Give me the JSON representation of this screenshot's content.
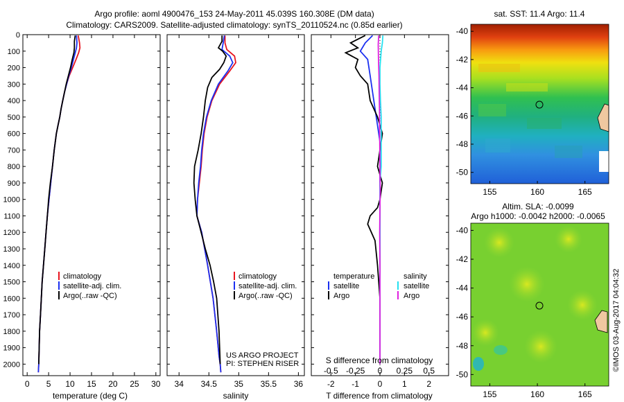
{
  "header": {
    "title_line1": "Argo profile: aoml 4900476_153 24-May-2011 45.039S 160.308E (DM data)",
    "title_line2": "Climatology: CARS2009. Satellite-adjusted climatology: synTS_20110524.nc (0.85d earlier)"
  },
  "credit": "©IMOS 03-Aug-2017 04:04:32",
  "colors": {
    "climatology": "#e8141e",
    "satellite": "#1a2ff0",
    "argo": "#000000",
    "sat_salinity": "#22e0f0",
    "argo_salinity": "#e020e0"
  },
  "chart_data": [
    {
      "type": "line",
      "panel": "temperature",
      "xlabel": "temperature (deg C)",
      "ylabel": "",
      "xlim": [
        -1,
        31
      ],
      "ylim": [
        2070,
        0
      ],
      "y_inverted": true,
      "xticks": [
        0,
        5,
        10,
        15,
        20,
        25,
        30
      ],
      "xtick_labels": [
        "0",
        "5",
        "10",
        "15",
        "20",
        "25",
        "30"
      ],
      "yticks": [
        0,
        100,
        200,
        300,
        400,
        500,
        600,
        700,
        800,
        900,
        1000,
        1100,
        1200,
        1300,
        1400,
        1500,
        1600,
        1700,
        1800,
        1900,
        2000
      ],
      "ytick_labels": [
        "0",
        "100",
        "200",
        "300",
        "400",
        "500",
        "600",
        "700",
        "800",
        "900",
        "1000",
        "1100",
        "1200",
        "1300",
        "1400",
        "1500",
        "1600",
        "1700",
        "1800",
        "1900",
        "2000"
      ],
      "legend": [
        "climatology",
        "satellite-adj. clim.",
        "Argo(..raw -QC)"
      ],
      "legend_position": "lower-center",
      "series": [
        {
          "name": "climatology",
          "color": "#e8141e",
          "x": [
            11.9,
            12.2,
            12.3,
            12.0,
            11.4,
            10.6,
            9.8,
            9.2,
            8.7,
            8.3,
            7.9,
            7.6,
            7.2,
            6.8,
            6.3,
            5.9,
            5.5,
            5.1,
            4.7,
            4.4,
            4.1,
            3.8,
            3.5,
            3.3,
            3.1,
            2.9,
            2.8,
            2.7,
            2.6
          ],
          "y": [
            5,
            50,
            80,
            110,
            150,
            200,
            250,
            300,
            350,
            400,
            450,
            500,
            550,
            600,
            700,
            800,
            900,
            1000,
            1100,
            1200,
            1300,
            1400,
            1500,
            1600,
            1700,
            1800,
            1900,
            2000,
            2050
          ]
        },
        {
          "name": "satellite-adj. clim.",
          "color": "#1a2ff0",
          "x": [
            11.5,
            11.6,
            11.5,
            11.2,
            10.8,
            10.3,
            9.7,
            9.2,
            8.7,
            8.3,
            7.9,
            7.6,
            7.2,
            6.8,
            6.3,
            5.9,
            5.5,
            5.1,
            4.7,
            4.4,
            4.1,
            3.8,
            3.5,
            3.3,
            3.1,
            2.9,
            2.8,
            2.7,
            2.6
          ],
          "y": [
            5,
            50,
            80,
            110,
            150,
            200,
            250,
            300,
            350,
            400,
            450,
            500,
            550,
            600,
            700,
            800,
            900,
            1000,
            1100,
            1200,
            1300,
            1400,
            1500,
            1600,
            1700,
            1800,
            1900,
            2000,
            2050
          ]
        },
        {
          "name": "Argo(..raw -QC)",
          "color": "#000000",
          "x": [
            11.2,
            11.0,
            11.0,
            10.9,
            10.5,
            10.1,
            9.6,
            9.1,
            8.7,
            8.3,
            7.9,
            7.6,
            7.2,
            6.8,
            6.3,
            5.9,
            5.4,
            5.0,
            4.7,
            4.4,
            4.1,
            3.8,
            3.5,
            3.3,
            3.1,
            2.9,
            2.8,
            2.7
          ],
          "y": [
            5,
            40,
            80,
            110,
            150,
            200,
            250,
            300,
            350,
            400,
            450,
            500,
            550,
            600,
            700,
            800,
            900,
            1000,
            1100,
            1200,
            1300,
            1400,
            1500,
            1600,
            1700,
            1800,
            1900,
            2000
          ]
        }
      ]
    },
    {
      "type": "line",
      "panel": "salinity",
      "xlabel": "salinity",
      "ylabel": "",
      "xlim": [
        33.8,
        36.1
      ],
      "ylim": [
        2070,
        0
      ],
      "y_inverted": true,
      "xticks": [
        34,
        34.5,
        35,
        35.5,
        36
      ],
      "xtick_labels": [
        "34",
        "34.5",
        "35",
        "35.5",
        "36"
      ],
      "legend": [
        "climatology",
        "satellite-adj. clim.",
        "Argo(..raw -QC)"
      ],
      "legend_position": "lower-center",
      "annotations": [
        "US ARGO PROJECT",
        "PI: STEPHEN RISER"
      ],
      "series": [
        {
          "name": "climatology",
          "color": "#e8141e",
          "x": [
            34.77,
            34.77,
            34.8,
            34.93,
            34.95,
            34.85,
            34.68,
            34.55,
            34.47,
            34.42,
            34.39,
            34.37,
            34.34,
            34.31,
            34.3,
            34.38,
            34.48,
            34.57,
            34.63,
            34.67,
            34.69,
            34.7
          ],
          "y": [
            5,
            50,
            90,
            130,
            170,
            220,
            300,
            400,
            500,
            600,
            700,
            800,
            900,
            1000,
            1100,
            1200,
            1400,
            1600,
            1800,
            1950,
            2000,
            2050
          ]
        },
        {
          "name": "satellite-adj. clim.",
          "color": "#1a2ff0",
          "x": [
            34.76,
            34.74,
            34.72,
            34.85,
            34.9,
            34.82,
            34.66,
            34.54,
            34.46,
            34.41,
            34.38,
            34.36,
            34.33,
            34.31,
            34.3,
            34.38,
            34.48,
            34.57,
            34.63,
            34.67,
            34.69,
            34.7
          ],
          "y": [
            5,
            50,
            90,
            130,
            170,
            220,
            300,
            400,
            500,
            600,
            700,
            800,
            900,
            1000,
            1100,
            1200,
            1400,
            1600,
            1800,
            1950,
            2000,
            2050
          ]
        },
        {
          "name": "Argo(..raw -QC)",
          "color": "#000000",
          "x": [
            34.72,
            34.72,
            34.66,
            34.73,
            34.79,
            34.75,
            34.68,
            34.55,
            34.48,
            34.44,
            34.41,
            34.37,
            34.32,
            34.26,
            34.25,
            34.27,
            34.3,
            34.37,
            34.44,
            34.52,
            34.58,
            34.63,
            34.67,
            34.69
          ],
          "y": [
            5,
            40,
            80,
            100,
            130,
            170,
            210,
            260,
            320,
            400,
            500,
            600,
            700,
            800,
            900,
            1000,
            1100,
            1200,
            1300,
            1400,
            1500,
            1600,
            1800,
            2000
          ]
        }
      ]
    },
    {
      "type": "line",
      "panel": "difference",
      "xlabel": "T difference from climatology",
      "xlabel_top": "S difference from climatology",
      "ylabel": "",
      "xlim": [
        -2.8,
        2.8
      ],
      "ylim": [
        2070,
        0
      ],
      "y_inverted": true,
      "xticks": [
        -2,
        -1,
        0,
        1,
        2
      ],
      "xtick_labels": [
        "-2",
        "-1",
        "0",
        "1",
        "2"
      ],
      "s_xticks": [
        -0.5,
        -0.25,
        0,
        0.25,
        0.5
      ],
      "s_xtick_labels": [
        "-0.5",
        "-0.25",
        "0",
        "0.25",
        "0.5"
      ],
      "legend_groups": [
        {
          "title": "temperature",
          "items": [
            "satellite",
            "Argo"
          ]
        },
        {
          "title": "salinity",
          "items": [
            "satellite",
            "Argo"
          ]
        }
      ],
      "legend_position": "lower-center",
      "series": [
        {
          "name": "T satellite",
          "color": "#1a2ff0",
          "x": [
            -0.3,
            -0.6,
            -0.8,
            -0.5,
            -0.4,
            -0.3,
            -0.2,
            -0.1,
            0,
            0,
            0,
            0,
            0,
            0,
            0,
            0,
            0,
            0,
            0,
            0
          ],
          "y": [
            5,
            50,
            100,
            150,
            250,
            350,
            450,
            550,
            650,
            750,
            850,
            950,
            1050,
            1200,
            1300,
            1400,
            1600,
            1800,
            1950,
            2000
          ]
        },
        {
          "name": "T Argo",
          "color": "#000000",
          "x": [
            -0.6,
            -1.2,
            -0.9,
            -1.4,
            -0.9,
            -1.0,
            -0.8,
            -0.5,
            -0.4,
            -0.1,
            0.1,
            0,
            -0.1,
            0.1,
            0,
            -0.1,
            -0.4,
            -0.5,
            -0.2,
            -0.1,
            0,
            0
          ],
          "y": [
            5,
            50,
            80,
            110,
            150,
            200,
            250,
            300,
            400,
            500,
            600,
            700,
            800,
            900,
            1000,
            1050,
            1100,
            1150,
            1250,
            1400,
            1600,
            2000
          ]
        },
        {
          "name": "S satellite",
          "color": "#22e0f0",
          "x": [
            0.12,
            0.1,
            0.05,
            0,
            0,
            0.02,
            0.05,
            0.05,
            0.05,
            0.05,
            0,
            0,
            0,
            0,
            0,
            0
          ],
          "y": [
            5,
            50,
            100,
            200,
            300,
            400,
            500,
            600,
            700,
            800,
            900,
            1000,
            1200,
            1400,
            1800,
            2000
          ]
        },
        {
          "name": "S Argo",
          "color": "#e020e0",
          "x": [
            -0.05,
            -0.07,
            -0.06,
            -0.04,
            -0.03,
            -0.02,
            -0.01,
            0,
            0.01,
            0,
            -0.01,
            0,
            0,
            0
          ],
          "y": [
            5,
            60,
            150,
            250,
            350,
            450,
            600,
            800,
            950,
            1050,
            1200,
            1400,
            1700,
            2000
          ]
        }
      ]
    }
  ],
  "maps": {
    "sst": {
      "title": "sat. SST: 11.4  Argo: 11.4",
      "xticks": [
        "155",
        "160",
        "165"
      ],
      "yticks": [
        "-40",
        "-42",
        "-44",
        "-46",
        "-48",
        "-50"
      ],
      "float_position": {
        "lon": 160.3,
        "lat": -45.04
      }
    },
    "sla": {
      "title_line1": "Altim. SLA: -0.0099",
      "title_line2": "Argo h1000: -0.0042 h2000: -0.0065",
      "xticks": [
        "155",
        "160",
        "165"
      ],
      "yticks": [
        "-40",
        "-42",
        "-44",
        "-46",
        "-48",
        "-50"
      ],
      "float_position": {
        "lon": 160.3,
        "lat": -45.04
      }
    }
  }
}
